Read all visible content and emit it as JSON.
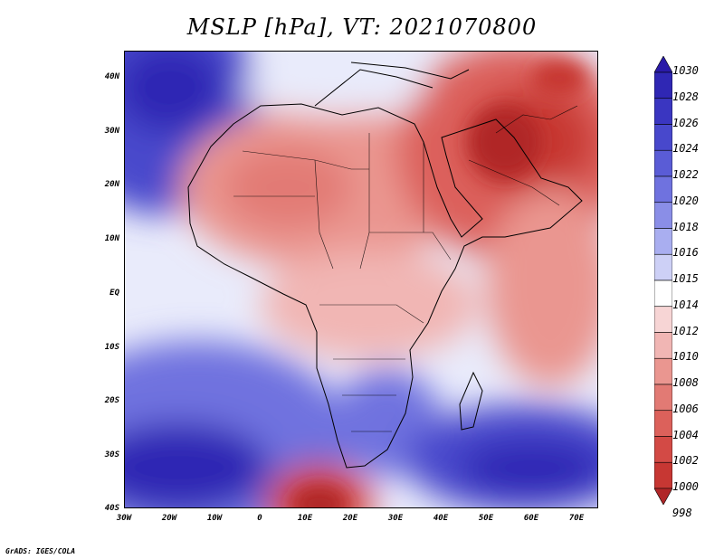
{
  "title": "MSLP [hPa], VT: 2021070800",
  "credit": "GrADS: IGES/COLA",
  "map": {
    "variable": "Mean sea level pressure",
    "units": "hPa",
    "valid_time": "2021070800",
    "lat_labels": [
      "40N",
      "30N",
      "20N",
      "10N",
      "EQ",
      "10S",
      "20S",
      "30S",
      "40S"
    ],
    "lon_labels": [
      "30W",
      "20W",
      "10W",
      "0",
      "10E",
      "20E",
      "30E",
      "40E",
      "50E",
      "60E",
      "70E"
    ],
    "lat_range": [
      -40,
      45
    ],
    "lon_range": [
      -30,
      75
    ]
  },
  "colorbar": {
    "levels": [
      "1030",
      "1028",
      "1026",
      "1024",
      "1022",
      "1020",
      "1018",
      "1016",
      "1015",
      "1014",
      "1012",
      "1010",
      "1008",
      "1006",
      "1004",
      "1002",
      "1000",
      "998"
    ],
    "colors": [
      "#2a1aa8",
      "#2f27b4",
      "#3a36c1",
      "#4848cc",
      "#5a5cd6",
      "#6f72df",
      "#8a8ee7",
      "#a9aef0",
      "#cdd0f6",
      "#ffffff",
      "#f7d5d5",
      "#f1b6b4",
      "#ea9690",
      "#e27a74",
      "#dc615b",
      "#d34a45",
      "#c73733",
      "#b02628"
    ]
  }
}
